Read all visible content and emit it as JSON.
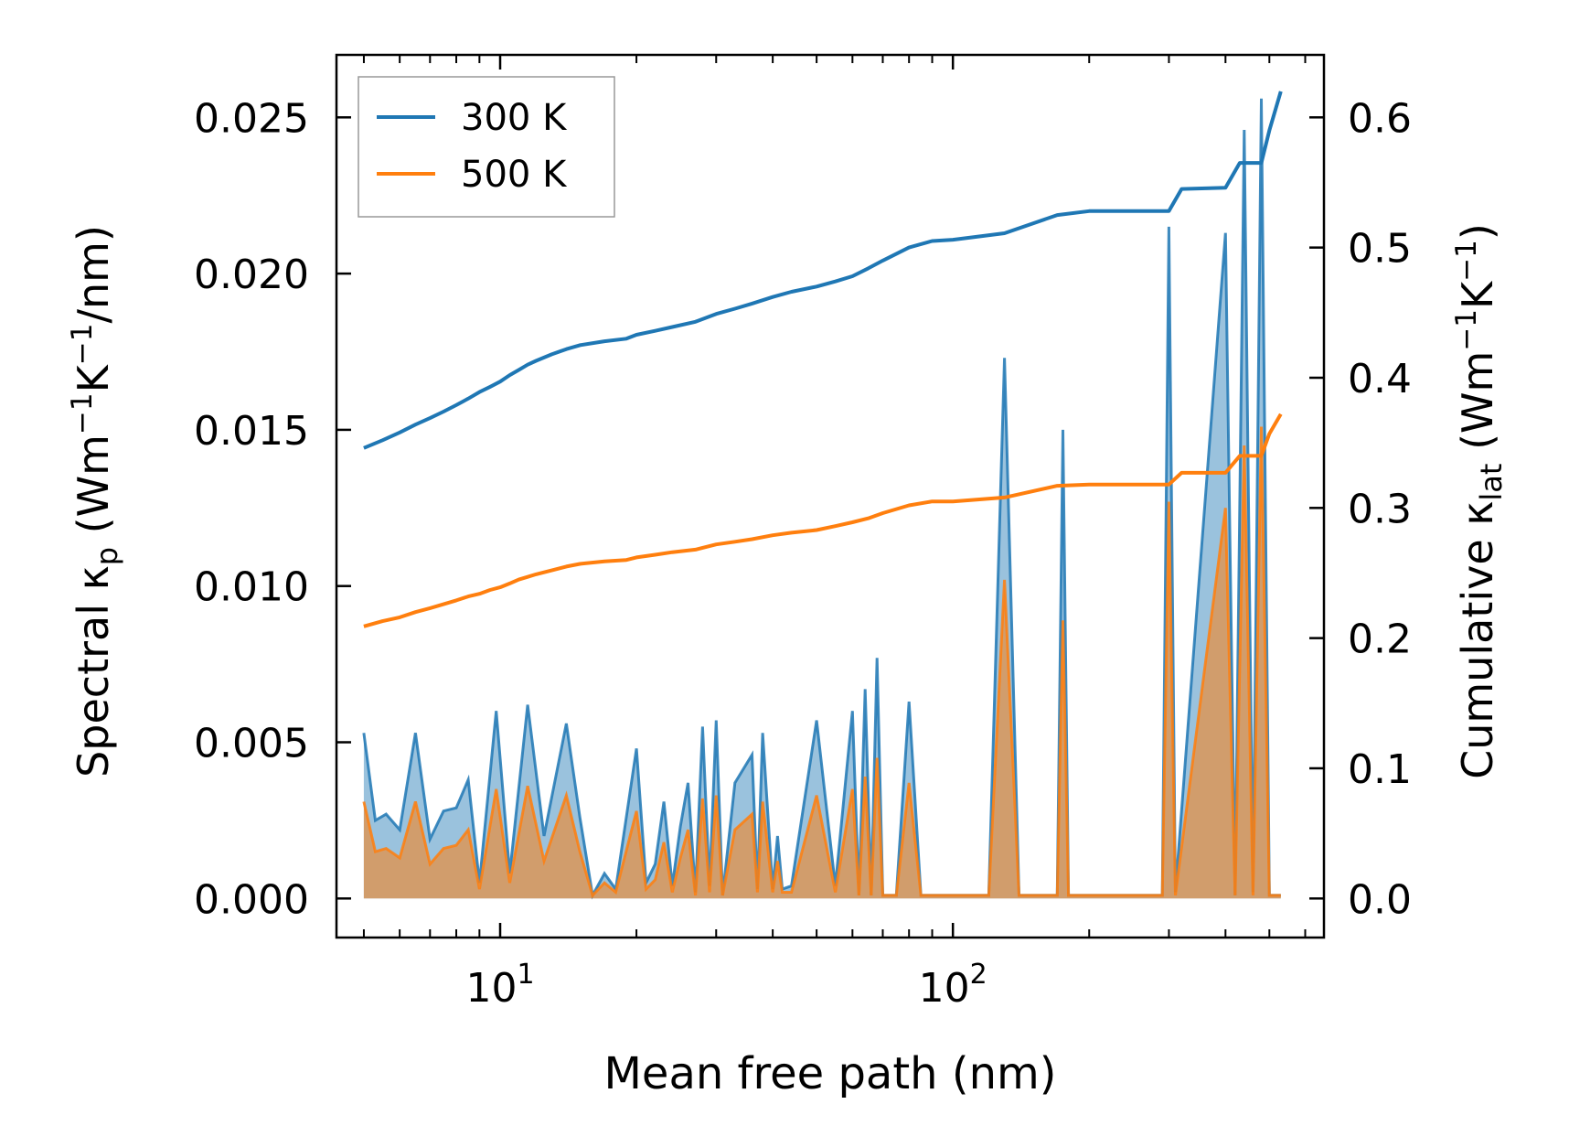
{
  "chart_data": {
    "type": "line",
    "xscale": "log",
    "xlim": [
      4.35,
      660
    ],
    "xlabel": "Mean free path (nm)",
    "xticks": [
      {
        "value": 10,
        "base": "10",
        "exp": "1"
      },
      {
        "value": 100,
        "base": "10",
        "exp": "2"
      }
    ],
    "left_axis": {
      "label_prefix": "Spectral κ",
      "label_sub": "p",
      "label_units_open": " (Wm",
      "label_units_exp1": "−1",
      "label_units_mid": "K",
      "label_units_exp2": "−1",
      "label_units_close": "/nm)",
      "ylim": [
        -0.00125,
        0.027
      ],
      "ticks": [
        0.0,
        0.005,
        0.01,
        0.015,
        0.02,
        0.025
      ],
      "tick_labels": [
        "0.000",
        "0.005",
        "0.010",
        "0.015",
        "0.020",
        "0.025"
      ]
    },
    "right_axis": {
      "label_prefix": "Cumulative κ",
      "label_sub": "lat",
      "label_units_open": " (Wm",
      "label_units_exp1": "−1",
      "label_units_mid": "K",
      "label_units_exp2": "−1",
      "label_units_close": ")",
      "ylim": [
        -0.03,
        0.648
      ],
      "ticks": [
        0.0,
        0.1,
        0.2,
        0.3,
        0.4,
        0.5,
        0.6
      ],
      "tick_labels": [
        "0.0",
        "0.1",
        "0.2",
        "0.3",
        "0.4",
        "0.5",
        "0.6"
      ]
    },
    "legend": {
      "position": "top-left",
      "entries": [
        {
          "label": "300 K",
          "color": "#1f77b4"
        },
        {
          "label": "500 K",
          "color": "#ff7f0e"
        }
      ]
    },
    "series": [
      {
        "name": "300 K",
        "color": "#1f77b4",
        "axis": "right",
        "kind": "cumulative",
        "x": [
          5.0,
          5.5,
          6.0,
          6.5,
          7.0,
          7.5,
          8.0,
          8.5,
          9.0,
          9.5,
          10.0,
          10.5,
          11.0,
          11.5,
          12,
          13,
          14,
          15,
          17,
          19,
          20,
          22,
          24,
          27,
          30,
          33,
          36,
          40,
          44,
          50,
          55,
          60,
          65,
          70,
          80,
          90,
          100,
          130,
          170,
          200,
          300,
          320,
          400,
          430,
          480,
          500,
          530
        ],
        "values": [
          0.346,
          0.352,
          0.358,
          0.364,
          0.369,
          0.374,
          0.379,
          0.384,
          0.389,
          0.393,
          0.397,
          0.402,
          0.406,
          0.41,
          0.413,
          0.418,
          0.422,
          0.425,
          0.428,
          0.43,
          0.433,
          0.436,
          0.439,
          0.443,
          0.449,
          0.453,
          0.457,
          0.462,
          0.466,
          0.47,
          0.474,
          0.478,
          0.484,
          0.49,
          0.5,
          0.505,
          0.506,
          0.511,
          0.525,
          0.528,
          0.528,
          0.545,
          0.546,
          0.565,
          0.565,
          0.59,
          0.62
        ]
      },
      {
        "name": "500 K",
        "color": "#ff7f0e",
        "axis": "right",
        "kind": "cumulative",
        "x": [
          5.0,
          5.5,
          6.0,
          6.5,
          7.0,
          7.5,
          8.0,
          8.5,
          9.0,
          9.5,
          10.0,
          10.5,
          11.0,
          11.5,
          12,
          13,
          14,
          15,
          17,
          19,
          20,
          22,
          24,
          27,
          30,
          33,
          36,
          40,
          44,
          50,
          55,
          60,
          65,
          70,
          80,
          90,
          100,
          130,
          170,
          200,
          300,
          320,
          400,
          430,
          480,
          500,
          530
        ],
        "values": [
          0.209,
          0.213,
          0.216,
          0.22,
          0.223,
          0.226,
          0.229,
          0.232,
          0.234,
          0.237,
          0.239,
          0.242,
          0.245,
          0.247,
          0.249,
          0.252,
          0.255,
          0.257,
          0.259,
          0.26,
          0.262,
          0.264,
          0.266,
          0.268,
          0.272,
          0.274,
          0.276,
          0.279,
          0.281,
          0.283,
          0.286,
          0.289,
          0.292,
          0.296,
          0.302,
          0.305,
          0.305,
          0.308,
          0.317,
          0.318,
          0.318,
          0.327,
          0.327,
          0.34,
          0.34,
          0.357,
          0.372
        ]
      },
      {
        "name": "300 K spectral",
        "color": "#1f77b4",
        "axis": "left",
        "kind": "spectral",
        "x": [
          5.0,
          5.3,
          5.6,
          6.0,
          6.5,
          7.0,
          7.5,
          8.0,
          8.5,
          9.0,
          9.8,
          10.5,
          11.5,
          12.5,
          14,
          15,
          16,
          17,
          18,
          20,
          21,
          22,
          23,
          24,
          25,
          26,
          27,
          28,
          29,
          30,
          31,
          33,
          36,
          37,
          38,
          40,
          41,
          42,
          44,
          50,
          55,
          60,
          62,
          64,
          66,
          68,
          70,
          75,
          80,
          85,
          100,
          120,
          130,
          140,
          170,
          175,
          180,
          290,
          300,
          310,
          400,
          420,
          440,
          460,
          480,
          500,
          510,
          520,
          530
        ],
        "values": [
          0.0053,
          0.0025,
          0.0027,
          0.0022,
          0.0053,
          0.0019,
          0.0028,
          0.0029,
          0.0038,
          0.0005,
          0.006,
          0.0008,
          0.0062,
          0.002,
          0.0056,
          0.0026,
          0.0001,
          0.0008,
          0.0003,
          0.0048,
          0.0005,
          0.0011,
          0.0031,
          0.0004,
          0.0023,
          0.0037,
          0.0002,
          0.0055,
          0.0004,
          0.0057,
          0.0001,
          0.0037,
          0.0046,
          0.0003,
          0.0053,
          0.0003,
          0.002,
          0.0003,
          0.0004,
          0.0057,
          0.0004,
          0.006,
          0.0001,
          0.0067,
          0.0001,
          0.0077,
          0.0001,
          0.0001,
          0.0063,
          0.0001,
          0.0001,
          0.0001,
          0.0173,
          0.0001,
          0.0001,
          0.015,
          0.0001,
          0.0001,
          0.0215,
          0.0002,
          0.0213,
          0.0001,
          0.0246,
          0.0002,
          0.0256,
          0.0001,
          0.0001,
          0.0001,
          0.0001
        ]
      },
      {
        "name": "500 K spectral",
        "color": "#ff7f0e",
        "axis": "left",
        "kind": "spectral",
        "x": [
          5.0,
          5.3,
          5.6,
          6.0,
          6.5,
          7.0,
          7.5,
          8.0,
          8.5,
          9.0,
          9.8,
          10.5,
          11.5,
          12.5,
          14,
          15,
          16,
          17,
          18,
          20,
          21,
          22,
          23,
          24,
          25,
          26,
          27,
          28,
          29,
          30,
          31,
          33,
          36,
          37,
          38,
          40,
          41,
          42,
          44,
          50,
          55,
          60,
          62,
          64,
          66,
          68,
          70,
          75,
          80,
          85,
          100,
          120,
          130,
          140,
          170,
          175,
          180,
          290,
          300,
          310,
          400,
          420,
          440,
          460,
          480,
          500,
          510,
          520,
          530
        ],
        "values": [
          0.0031,
          0.0015,
          0.0016,
          0.0013,
          0.0031,
          0.0011,
          0.0016,
          0.0017,
          0.0022,
          0.0003,
          0.0035,
          0.0005,
          0.0036,
          0.0012,
          0.0033,
          0.0015,
          0.0001,
          0.0005,
          0.0002,
          0.0028,
          0.0003,
          0.0006,
          0.0018,
          0.0002,
          0.0013,
          0.0022,
          0.0001,
          0.0032,
          0.0002,
          0.0033,
          0.0001,
          0.0022,
          0.0027,
          0.0002,
          0.0031,
          0.0002,
          0.0012,
          0.0002,
          0.0002,
          0.0033,
          0.0002,
          0.0035,
          0.0001,
          0.0039,
          0.0001,
          0.0045,
          0.0001,
          0.0001,
          0.0037,
          0.0001,
          0.0001,
          0.0001,
          0.0102,
          0.0001,
          0.0001,
          0.0089,
          0.0001,
          0.0001,
          0.0127,
          0.0001,
          0.0125,
          0.0001,
          0.0145,
          0.0001,
          0.0151,
          0.0001,
          0.0001,
          0.0001,
          0.0001
        ]
      }
    ]
  }
}
